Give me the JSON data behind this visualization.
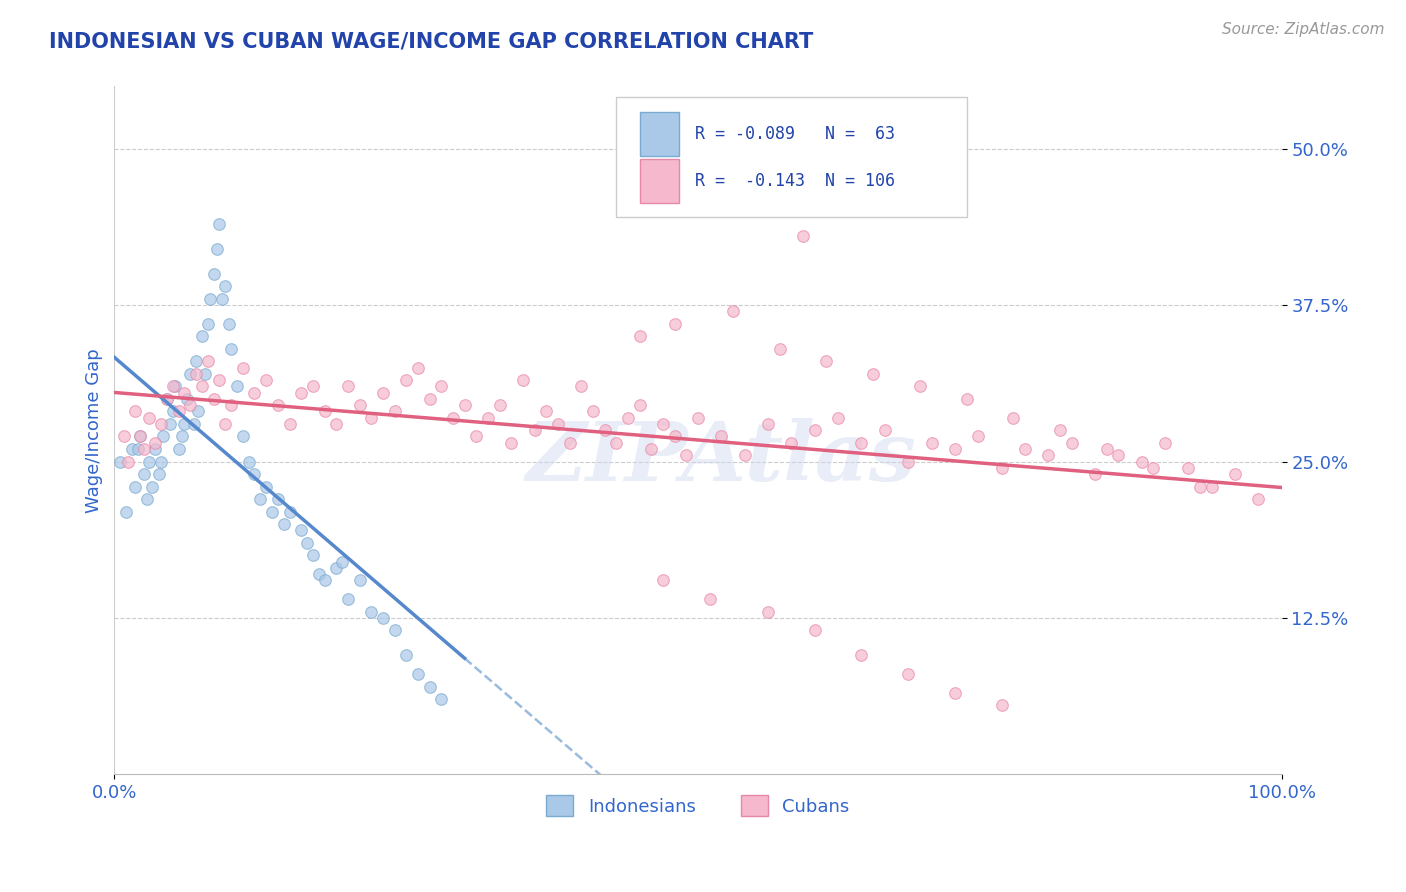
{
  "title": "INDONESIAN VS CUBAN WAGE/INCOME GAP CORRELATION CHART",
  "source": "Source: ZipAtlas.com",
  "ylabel": "Wage/Income Gap",
  "xlim": [
    0,
    1.0
  ],
  "ylim": [
    0.0,
    0.55
  ],
  "yticks": [
    0.125,
    0.25,
    0.375,
    0.5
  ],
  "ytick_labels": [
    "12.5%",
    "25.0%",
    "37.5%",
    "50.0%"
  ],
  "xticks": [
    0.0,
    1.0
  ],
  "xtick_labels": [
    "0.0%",
    "100.0%"
  ],
  "color_indonesian_fill": "#aac8e8",
  "color_indonesian_edge": "#7aaacf",
  "color_cuban_fill": "#f5b8cc",
  "color_cuban_edge": "#e888a8",
  "color_trend_indonesian": "#5588cc",
  "color_trend_cuban": "#e06080",
  "color_trend_dashed": "#99bbdd",
  "title_color": "#2244aa",
  "tick_label_color": "#3366cc",
  "ylabel_color": "#3366cc",
  "source_color": "#999999",
  "watermark": "ZIPAtlas",
  "background_color": "#ffffff",
  "indonesian_x": [
    0.005,
    0.01,
    0.015,
    0.018,
    0.02,
    0.022,
    0.025,
    0.028,
    0.03,
    0.032,
    0.035,
    0.038,
    0.04,
    0.042,
    0.045,
    0.048,
    0.05,
    0.052,
    0.055,
    0.058,
    0.06,
    0.062,
    0.065,
    0.068,
    0.07,
    0.072,
    0.075,
    0.078,
    0.08,
    0.082,
    0.085,
    0.088,
    0.09,
    0.092,
    0.095,
    0.098,
    0.1,
    0.105,
    0.11,
    0.115,
    0.12,
    0.125,
    0.13,
    0.135,
    0.14,
    0.145,
    0.15,
    0.16,
    0.165,
    0.17,
    0.175,
    0.18,
    0.19,
    0.195,
    0.2,
    0.21,
    0.22,
    0.23,
    0.24,
    0.25,
    0.26,
    0.27,
    0.28
  ],
  "indonesian_y": [
    0.25,
    0.21,
    0.26,
    0.23,
    0.26,
    0.27,
    0.24,
    0.22,
    0.25,
    0.23,
    0.26,
    0.24,
    0.25,
    0.27,
    0.3,
    0.28,
    0.29,
    0.31,
    0.26,
    0.27,
    0.28,
    0.3,
    0.32,
    0.28,
    0.33,
    0.29,
    0.35,
    0.32,
    0.36,
    0.38,
    0.4,
    0.42,
    0.44,
    0.38,
    0.39,
    0.36,
    0.34,
    0.31,
    0.27,
    0.25,
    0.24,
    0.22,
    0.23,
    0.21,
    0.22,
    0.2,
    0.21,
    0.195,
    0.185,
    0.175,
    0.16,
    0.155,
    0.165,
    0.17,
    0.14,
    0.155,
    0.13,
    0.125,
    0.115,
    0.095,
    0.08,
    0.07,
    0.06
  ],
  "cuban_x": [
    0.008,
    0.012,
    0.018,
    0.022,
    0.025,
    0.03,
    0.035,
    0.04,
    0.045,
    0.05,
    0.055,
    0.06,
    0.065,
    0.07,
    0.075,
    0.08,
    0.085,
    0.09,
    0.095,
    0.1,
    0.11,
    0.12,
    0.13,
    0.14,
    0.15,
    0.16,
    0.17,
    0.18,
    0.19,
    0.2,
    0.21,
    0.22,
    0.23,
    0.24,
    0.25,
    0.26,
    0.27,
    0.28,
    0.29,
    0.3,
    0.31,
    0.32,
    0.33,
    0.34,
    0.35,
    0.36,
    0.37,
    0.38,
    0.39,
    0.4,
    0.41,
    0.42,
    0.43,
    0.44,
    0.45,
    0.46,
    0.47,
    0.48,
    0.49,
    0.5,
    0.52,
    0.54,
    0.56,
    0.58,
    0.6,
    0.62,
    0.64,
    0.66,
    0.68,
    0.7,
    0.72,
    0.74,
    0.76,
    0.78,
    0.8,
    0.82,
    0.84,
    0.86,
    0.88,
    0.9,
    0.92,
    0.94,
    0.96,
    0.98,
    0.45,
    0.48,
    0.53,
    0.57,
    0.61,
    0.65,
    0.69,
    0.73,
    0.77,
    0.81,
    0.85,
    0.89,
    0.93,
    0.59,
    0.47,
    0.51,
    0.56,
    0.6,
    0.64,
    0.68,
    0.72,
    0.76
  ],
  "cuban_y": [
    0.27,
    0.25,
    0.29,
    0.27,
    0.26,
    0.285,
    0.265,
    0.28,
    0.3,
    0.31,
    0.29,
    0.305,
    0.295,
    0.32,
    0.31,
    0.33,
    0.3,
    0.315,
    0.28,
    0.295,
    0.325,
    0.305,
    0.315,
    0.295,
    0.28,
    0.305,
    0.31,
    0.29,
    0.28,
    0.31,
    0.295,
    0.285,
    0.305,
    0.29,
    0.315,
    0.325,
    0.3,
    0.31,
    0.285,
    0.295,
    0.27,
    0.285,
    0.295,
    0.265,
    0.315,
    0.275,
    0.29,
    0.28,
    0.265,
    0.31,
    0.29,
    0.275,
    0.265,
    0.285,
    0.295,
    0.26,
    0.28,
    0.27,
    0.255,
    0.285,
    0.27,
    0.255,
    0.28,
    0.265,
    0.275,
    0.285,
    0.265,
    0.275,
    0.25,
    0.265,
    0.26,
    0.27,
    0.245,
    0.26,
    0.255,
    0.265,
    0.24,
    0.255,
    0.25,
    0.265,
    0.245,
    0.23,
    0.24,
    0.22,
    0.35,
    0.36,
    0.37,
    0.34,
    0.33,
    0.32,
    0.31,
    0.3,
    0.285,
    0.275,
    0.26,
    0.245,
    0.23,
    0.43,
    0.155,
    0.14,
    0.13,
    0.115,
    0.095,
    0.08,
    0.065,
    0.055
  ]
}
